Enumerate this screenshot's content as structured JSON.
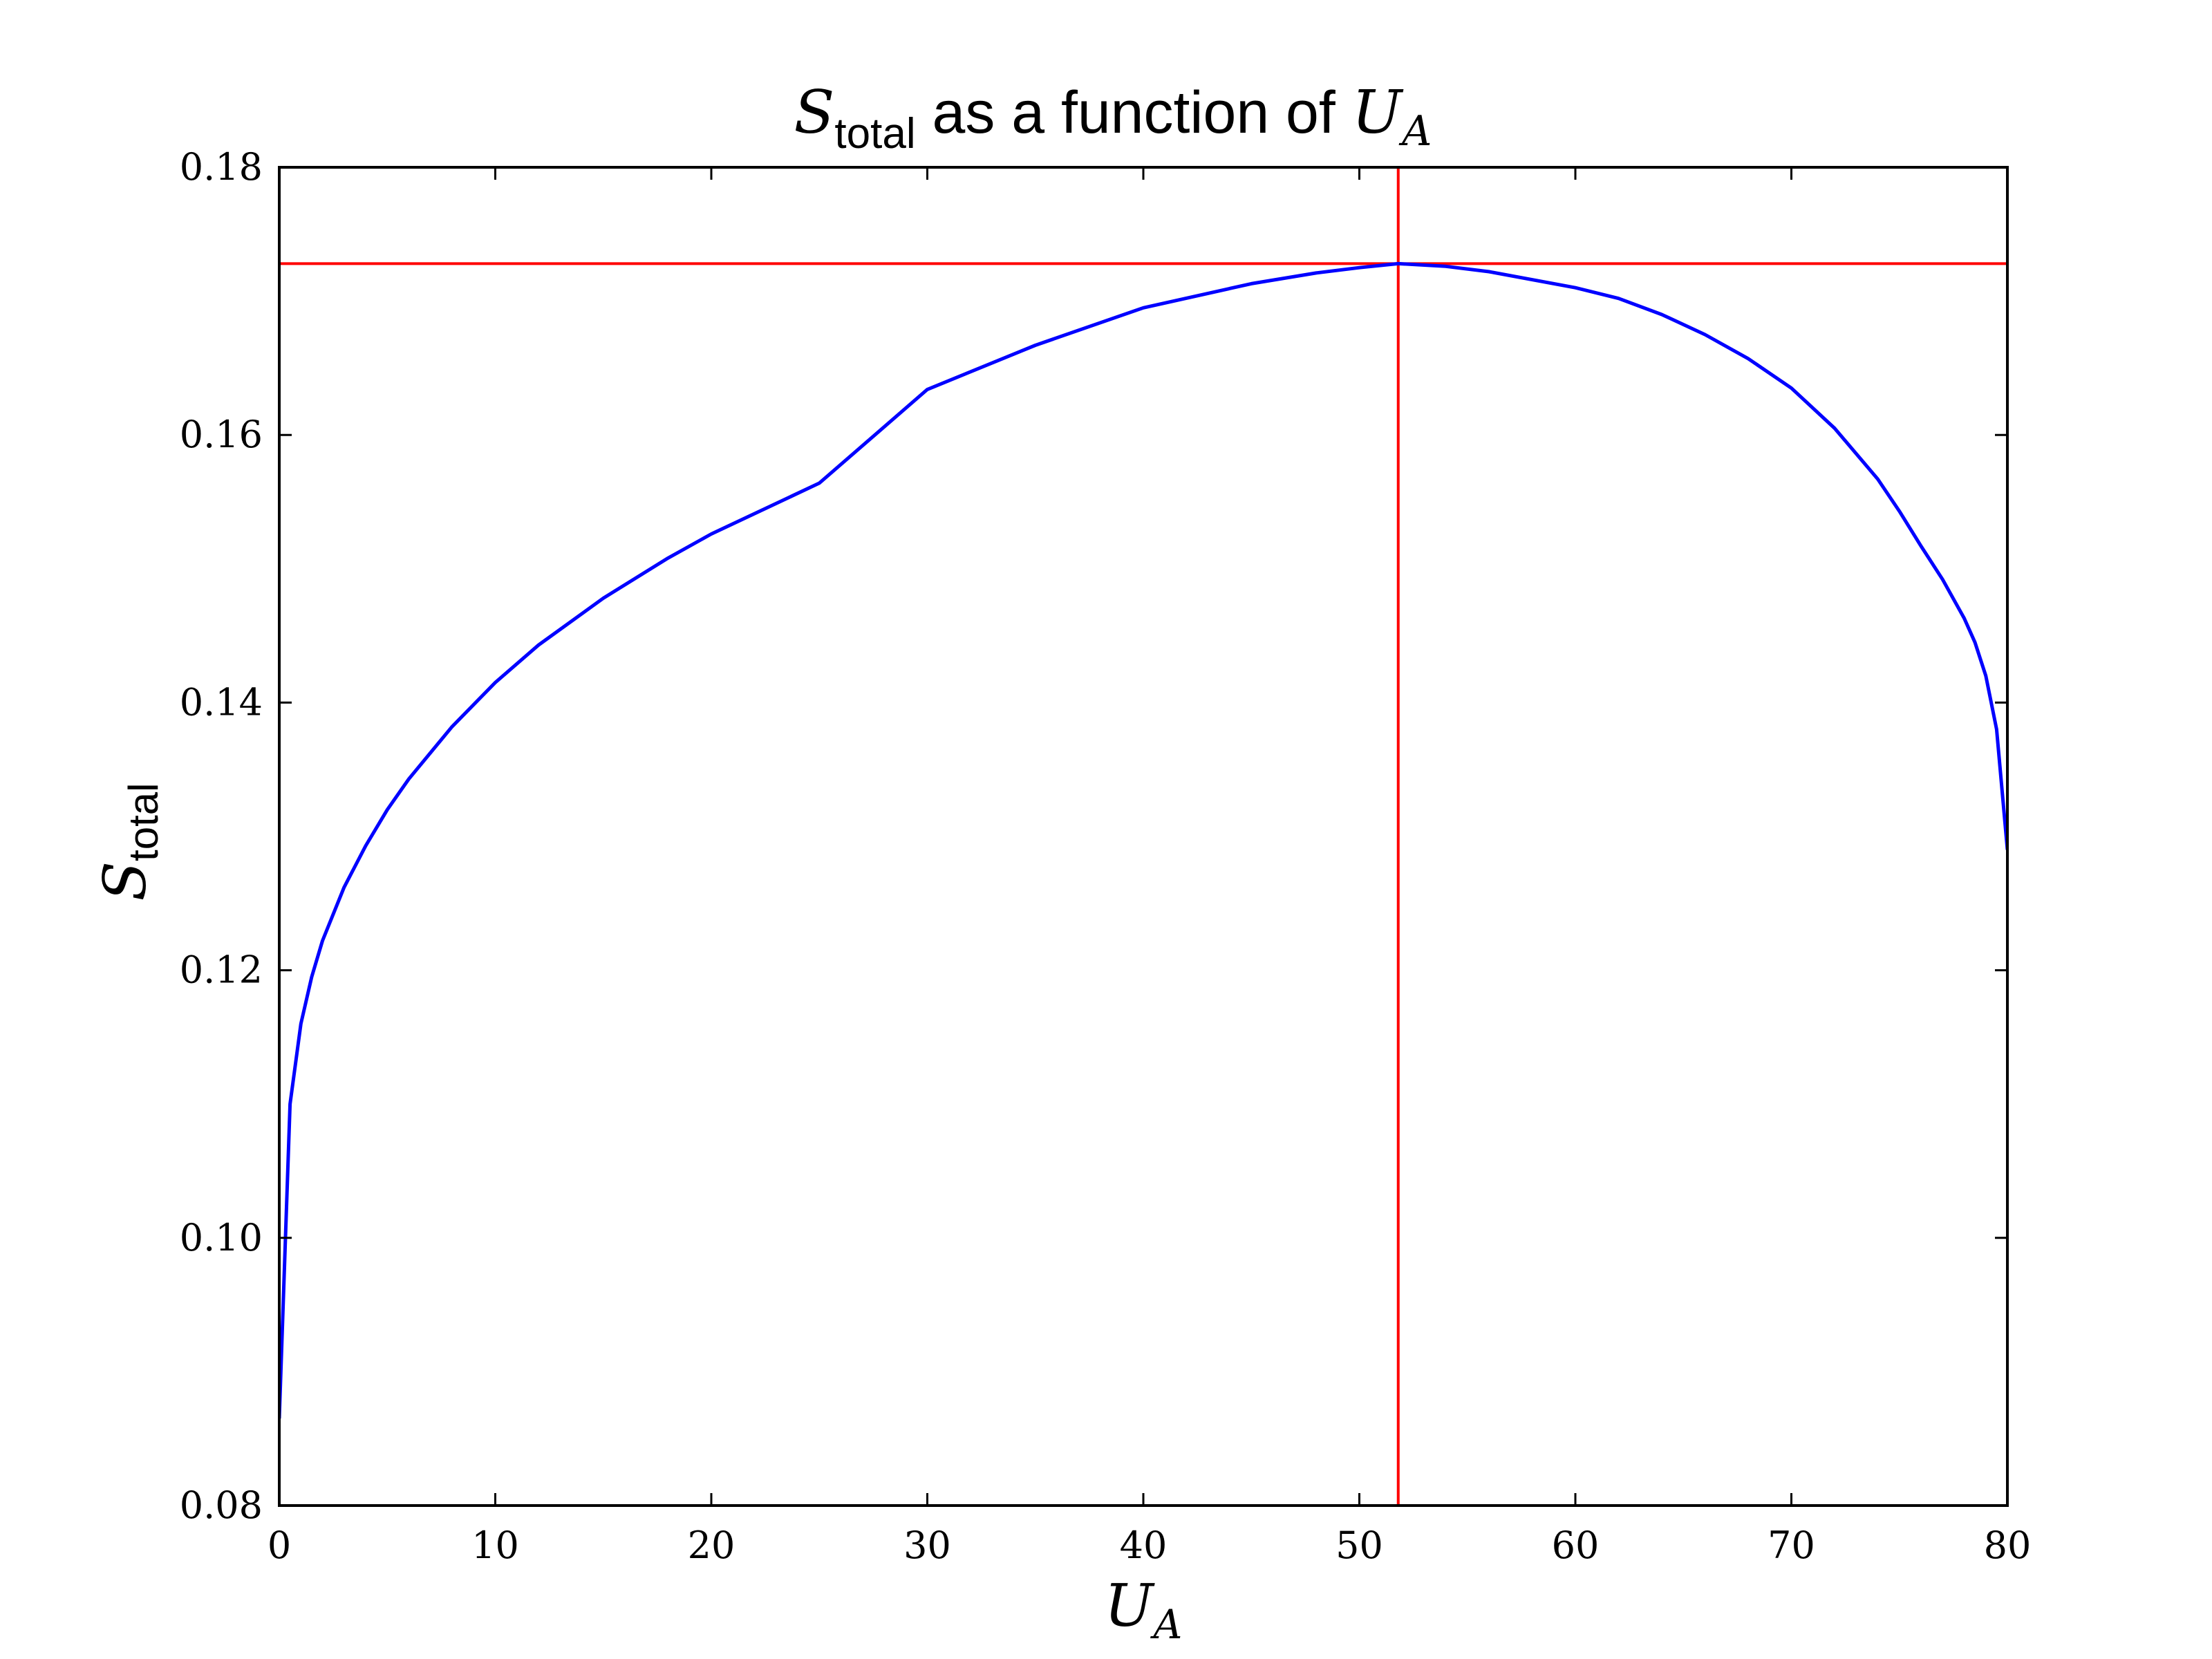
{
  "chart_data": {
    "type": "line",
    "title": {
      "symbol": "S",
      "subscript": "total",
      "text": " as a function of ",
      "var_symbol": "U",
      "var_subscript": "A"
    },
    "xlabel": {
      "symbol": "U",
      "subscript": "A"
    },
    "ylabel": {
      "symbol": "S",
      "subscript": "total"
    },
    "xlim": [
      0,
      80
    ],
    "ylim": [
      0.08,
      0.18
    ],
    "xticks": [
      0,
      10,
      20,
      30,
      40,
      50,
      60,
      70,
      80
    ],
    "xtick_labels": [
      "0",
      "10",
      "20",
      "30",
      "40",
      "50",
      "60",
      "70",
      "80"
    ],
    "yticks": [
      0.08,
      0.1,
      0.12,
      0.14,
      0.16,
      0.18
    ],
    "ytick_labels": [
      "0.08",
      "0.10",
      "0.12",
      "0.14",
      "0.16",
      "0.18"
    ],
    "grid": false,
    "series": [
      {
        "color": "#0000ff",
        "x": [
          0,
          0.5,
          1,
          1.5,
          2,
          3,
          4,
          5,
          6,
          8,
          10,
          12,
          15,
          18,
          20,
          25,
          30,
          35,
          40,
          45,
          48,
          50,
          51.8,
          54,
          56,
          60,
          62,
          64,
          66,
          68,
          70,
          72,
          74,
          75,
          76,
          77,
          78,
          78.5,
          79,
          79.5,
          80
        ],
        "y": [
          0.0865,
          0.11,
          0.116,
          0.1195,
          0.1222,
          0.1262,
          0.1293,
          0.132,
          0.1343,
          0.1382,
          0.1415,
          0.1443,
          0.1478,
          0.1508,
          0.1526,
          0.1564,
          0.1634,
          0.1667,
          0.1695,
          0.1713,
          0.1721,
          0.1725,
          0.1728,
          0.1726,
          0.1722,
          0.171,
          0.1702,
          0.169,
          0.1675,
          0.1657,
          0.1635,
          0.1605,
          0.1567,
          0.1543,
          0.1517,
          0.1492,
          0.1463,
          0.1445,
          0.142,
          0.138,
          0.129
        ]
      }
    ],
    "reference_lines": [
      {
        "orientation": "horizontal",
        "value": 0.1728,
        "color": "#ff0000"
      },
      {
        "orientation": "vertical",
        "value": 51.8,
        "color": "#ff0000"
      }
    ]
  }
}
